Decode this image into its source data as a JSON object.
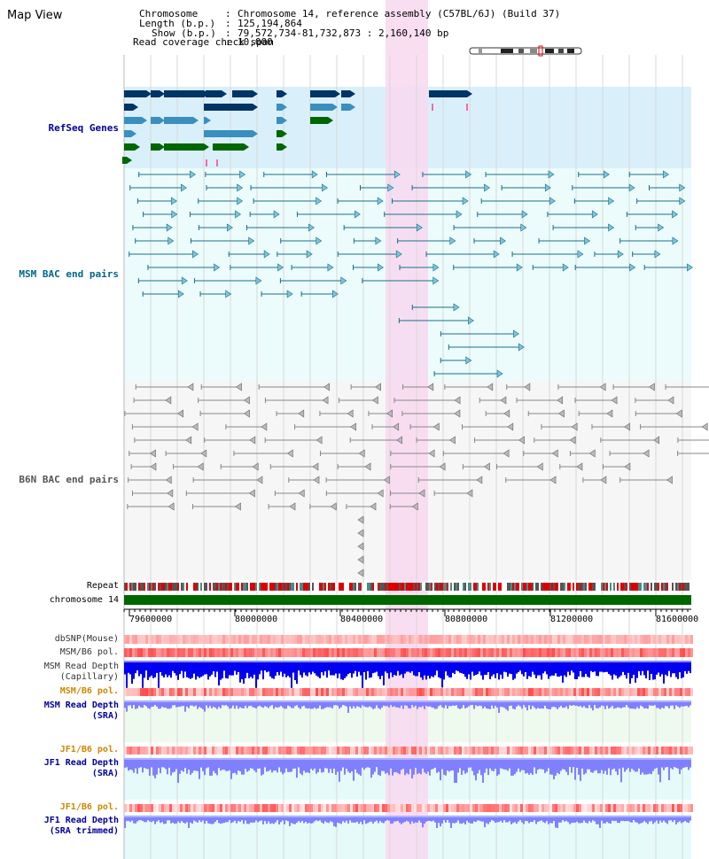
{
  "view_title": "Map View",
  "info": {
    "chromosome_label": "Chromosome",
    "chromosome_value": "Chromosome 14, reference assembly (C57BL/6J) (Build 37)",
    "length_label": "Length (b.p.)",
    "length_value": "125,194,864",
    "show_label": "Show (b.p.)",
    "show_value": "79,572,734-81,732,873 : 2,160,140 bp",
    "coverage_label": "Read coverage check span",
    "coverage_value": "10,000"
  },
  "tracks": {
    "refseq": "RefSeq Genes",
    "msm_bac": "MSM BAC end pairs",
    "b6n_bac": "B6N BAC end pairs",
    "repeat": "Repeat",
    "chromosome": "chromosome 14",
    "dbsnp": "dbSNP(Mouse)",
    "msm_pol": "MSM/B6 pol.",
    "msm_depth_cap_1": "MSM Read Depth",
    "msm_depth_cap_2": "(Capillary)",
    "msm_pol_2": "MSM/B6 pol.",
    "msm_depth_sra_1": "MSM Read Depth",
    "msm_depth_sra_2": "(SRA)",
    "jf1_pol": "JF1/B6 pol.",
    "jf1_depth_1": "JF1 Read Depth",
    "jf1_depth_2": "(SRA)",
    "jf1_pol_2": "JF1/B6 pol.",
    "jf1_trim_1": "JF1 Read Depth",
    "jf1_trim_2": "(SRA trimmed)"
  },
  "axis_ticks": [
    "79600000",
    "80000000",
    "80400000",
    "80800000",
    "81200000",
    "81600000"
  ],
  "colors": {
    "refseq_bg": "#d9f0fa",
    "bac_bg": "#ecfcfc",
    "highlight": "#f8d8f0",
    "gene_dark": "#003366",
    "gene_mid": "#3a8fbf",
    "gene_green": "#006600",
    "msm_pair": "#1a6e8a",
    "b6n_pair": "#666666",
    "chromosome_bar": "#006600",
    "depth_blue": "#0000ee",
    "depth_lav": "#8080ff",
    "pol_red": "#ee2222",
    "label_blue": "#000099",
    "label_orange": "#cc8800",
    "label_teal": "#006688"
  }
}
